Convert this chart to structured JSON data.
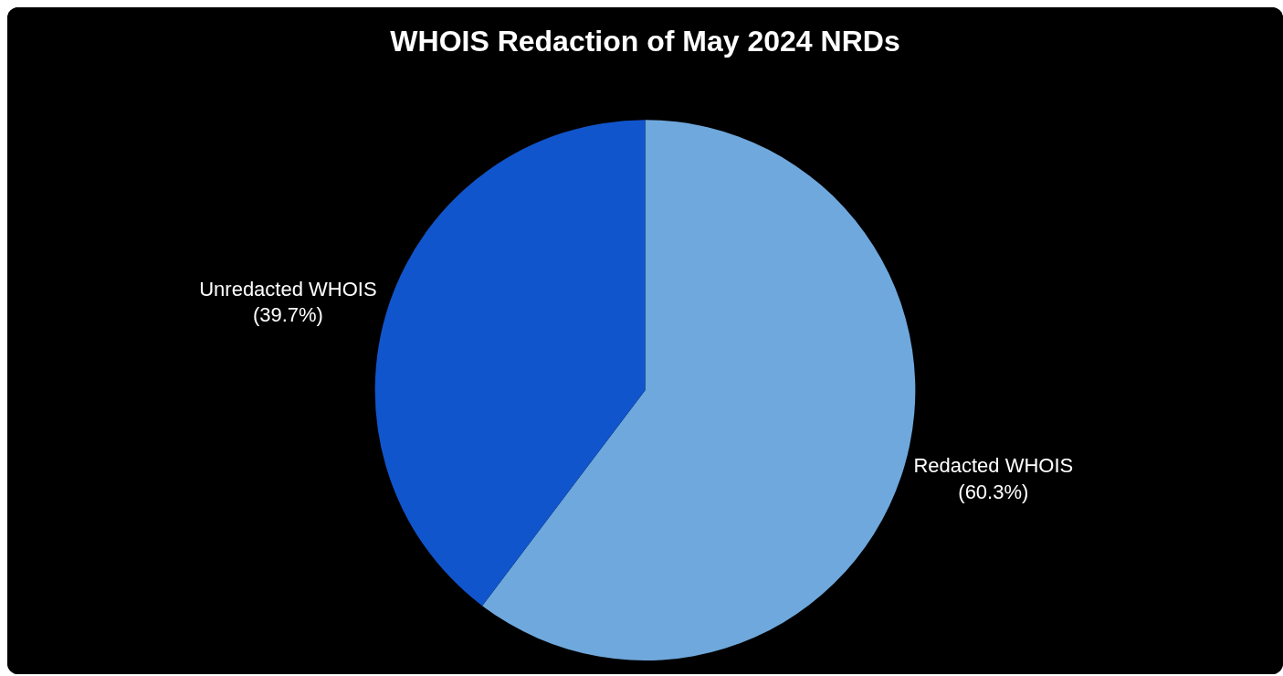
{
  "chart_data": {
    "type": "pie",
    "title": "WHOIS Redaction of May 2024 NRDs",
    "categories": [
      "Redacted WHOIS",
      "Unredacted WHOIS"
    ],
    "values": [
      60.3,
      39.7
    ],
    "colors": [
      "#6fa8dc",
      "#1155cc"
    ],
    "value_labels": [
      "(60.3%)",
      "(39.7%)"
    ],
    "legend": false
  }
}
